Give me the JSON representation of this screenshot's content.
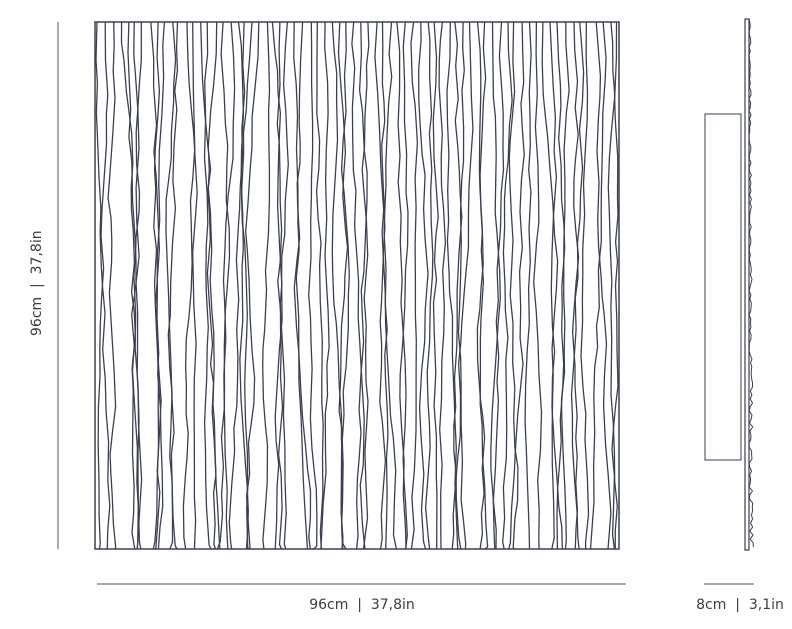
{
  "dimensions": {
    "height_label": "96cm  |  37,8in",
    "width_label": "96cm  |  37,8in",
    "depth_label": "8cm  |  3,1in"
  },
  "colors": {
    "line": "#3b4050",
    "text": "#3a3d44"
  }
}
